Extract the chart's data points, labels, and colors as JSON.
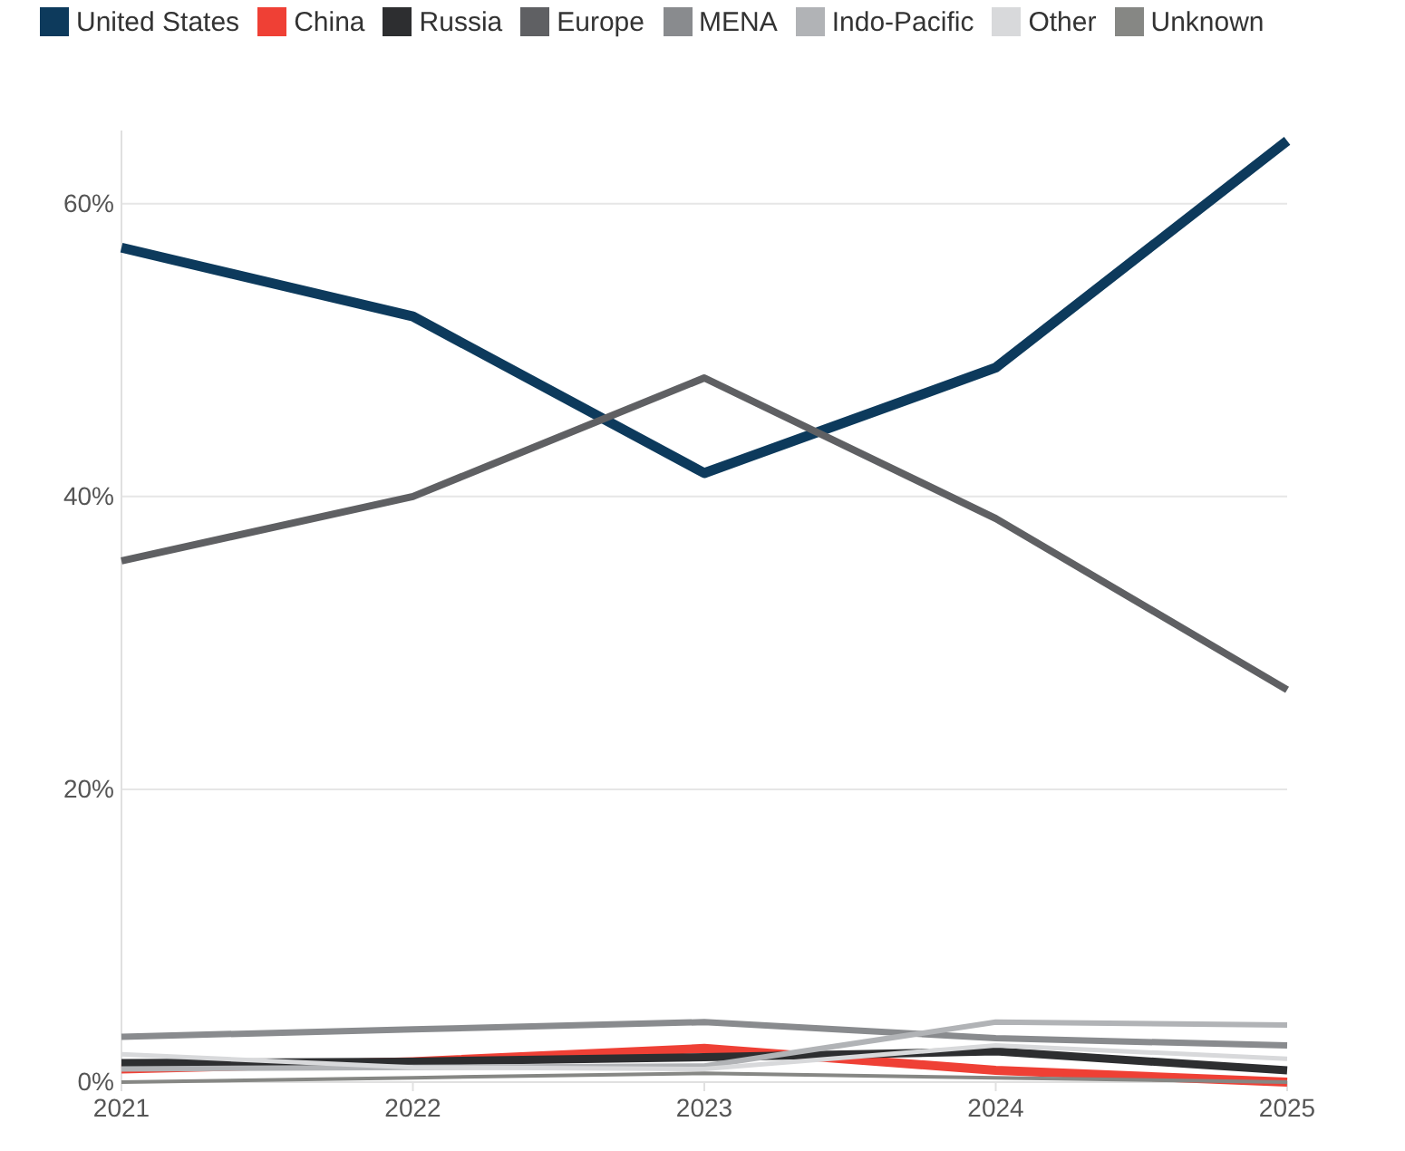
{
  "chart_data": {
    "type": "line",
    "x": [
      2021,
      2022,
      2023,
      2024,
      2025
    ],
    "xlim": [
      2021,
      2025
    ],
    "xticks": [
      2021,
      2022,
      2023,
      2024,
      2025
    ],
    "ylim": [
      0,
      65
    ],
    "yticks": [
      {
        "value": 0,
        "label": "0%"
      },
      {
        "value": 20,
        "label": "20%"
      },
      {
        "value": 40,
        "label": "40%"
      },
      {
        "value": 60,
        "label": "60%"
      }
    ],
    "grid": "y",
    "legend": "top left",
    "marker": "none",
    "line_style": "solid",
    "series": [
      {
        "name": "United States",
        "color": "#0d3a5c",
        "values": [
          57.0,
          52.3,
          41.6,
          48.8,
          64.3
        ]
      },
      {
        "name": "China",
        "color": "#ef4035",
        "values": [
          0.9,
          1.4,
          2.3,
          0.8,
          0.0
        ]
      },
      {
        "name": "Russia",
        "color": "#2d2e30",
        "values": [
          1.3,
          1.4,
          1.7,
          2.1,
          0.8
        ]
      },
      {
        "name": "Europe",
        "color": "#5f6063",
        "values": [
          35.6,
          40.0,
          48.1,
          38.5,
          26.8
        ]
      },
      {
        "name": "MENA",
        "color": "#898b8e",
        "values": [
          3.1,
          3.6,
          4.1,
          3.0,
          2.5
        ]
      },
      {
        "name": "Indo-Pacific",
        "color": "#b1b3b6",
        "values": [
          0.9,
          1.0,
          1.1,
          4.1,
          3.9
        ]
      },
      {
        "name": "Other",
        "color": "#d8d9db",
        "values": [
          1.9,
          1.0,
          0.9,
          2.5,
          1.6
        ]
      },
      {
        "name": "Unknown",
        "color": "#868784",
        "values": [
          0.0,
          0.3,
          0.6,
          0.3,
          0.0
        ]
      }
    ]
  }
}
